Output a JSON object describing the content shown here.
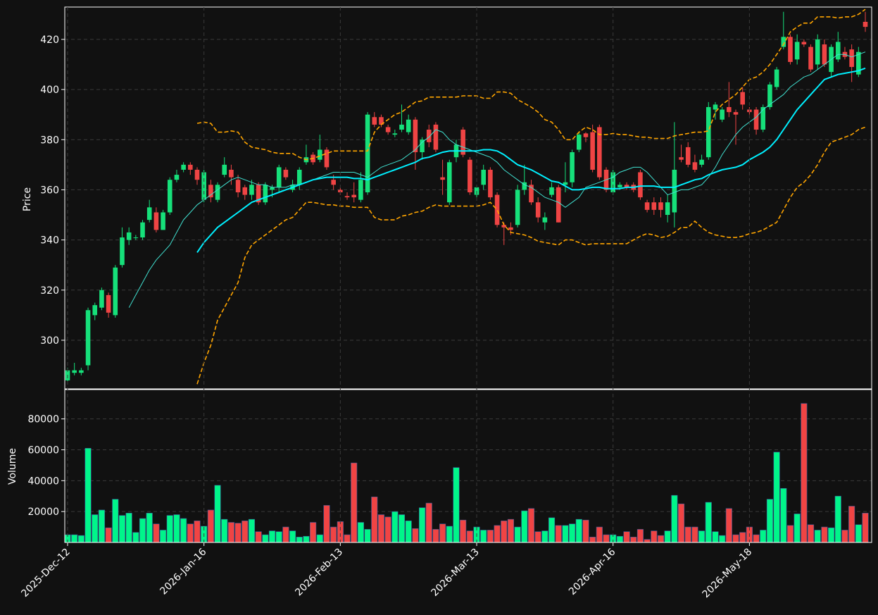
{
  "chart_data": [
    {
      "type": "candlestick",
      "ylabel": "Price",
      "ylim": [
        280.6,
        432.9
      ],
      "yticks": [
        300,
        320,
        340,
        360,
        380,
        400,
        420
      ],
      "grid": true,
      "colors": {
        "up": "#16e07a",
        "down": "#ef4444"
      },
      "open": [
        284,
        287,
        287,
        290,
        310,
        313,
        318,
        310,
        330,
        340,
        341,
        341,
        348,
        351,
        344,
        351,
        364,
        368,
        370,
        368,
        356,
        362,
        356,
        366,
        368,
        364,
        361,
        358,
        362,
        355,
        360,
        361,
        368,
        360,
        362,
        371,
        374,
        372,
        376,
        364,
        360,
        357.5,
        358,
        356,
        359,
        389,
        389,
        385,
        382,
        384,
        383,
        388,
        375,
        384,
        386,
        365,
        355,
        373,
        384,
        372,
        358,
        362,
        368,
        358,
        346,
        345,
        346,
        360,
        362,
        355,
        347,
        358,
        361,
        362,
        363,
        376,
        382.5,
        383,
        385,
        368,
        359,
        361,
        362,
        362,
        367,
        355,
        355,
        355,
        350,
        351,
        373,
        377,
        371,
        370,
        373,
        392,
        388,
        393,
        391,
        399,
        392,
        392,
        384,
        393,
        401,
        417,
        421,
        412,
        419,
        417,
        410,
        418,
        407,
        412,
        415,
        416,
        406,
        427
      ],
      "high": [
        289,
        291,
        289,
        313,
        315,
        321,
        319,
        330,
        345,
        345,
        342,
        348,
        356,
        353,
        352,
        365,
        368,
        371,
        371,
        369,
        368,
        364,
        363,
        373,
        370,
        366,
        362,
        364,
        363,
        363,
        362,
        370,
        369,
        364,
        369,
        378,
        375,
        382,
        377,
        366,
        361,
        359,
        363,
        367,
        391,
        391,
        390,
        386,
        384,
        394,
        390,
        389,
        381,
        386,
        387,
        372,
        372,
        380,
        385,
        373,
        362,
        370,
        369,
        359,
        347,
        347,
        362,
        370,
        364,
        357,
        351,
        363,
        362,
        371,
        376,
        383,
        383,
        386,
        386,
        369,
        368,
        363,
        363,
        363,
        368,
        356,
        357,
        357,
        358,
        387,
        378,
        379,
        374,
        374,
        395,
        395,
        393,
        403,
        392,
        401,
        393,
        393,
        394,
        403,
        409,
        431,
        422,
        422,
        420,
        418,
        422,
        420,
        418,
        423,
        417,
        418,
        417,
        431
      ],
      "low": [
        283,
        286,
        286,
        288,
        308,
        312,
        309,
        309,
        329,
        338,
        340,
        340,
        347,
        343,
        344,
        350,
        363,
        367,
        366,
        362,
        355,
        355,
        355,
        365,
        362,
        357,
        356,
        356,
        354,
        354,
        357,
        359,
        364,
        359,
        360,
        370,
        370,
        371,
        368,
        360,
        358,
        356,
        355,
        355,
        358,
        385,
        385,
        382,
        381,
        383,
        382,
        368,
        372,
        377,
        375,
        358,
        354,
        371,
        373,
        358,
        357,
        360,
        356,
        345,
        338,
        342,
        345,
        358,
        354,
        347,
        344,
        357,
        347,
        359,
        361,
        375,
        379,
        367,
        364,
        359,
        358,
        360,
        360,
        359,
        356,
        351,
        350,
        349,
        347,
        345,
        371,
        369,
        367,
        369,
        372,
        388,
        387,
        389,
        378,
        392,
        390,
        382,
        383,
        392,
        400,
        416,
        410,
        410,
        417,
        407,
        408,
        409,
        405,
        411,
        412,
        403,
        405,
        423
      ],
      "close": [
        288,
        288,
        288,
        312,
        314,
        320,
        311,
        329,
        341,
        343,
        341,
        347,
        353,
        344,
        351,
        364,
        366,
        370,
        368,
        364,
        367,
        357,
        362,
        370,
        365,
        359,
        358,
        362,
        355,
        362,
        361,
        369,
        365,
        362,
        368,
        373,
        371,
        376,
        369,
        362,
        359,
        357,
        357,
        364,
        390,
        386,
        386,
        383,
        382.5,
        386,
        388,
        375,
        380,
        379,
        376,
        364,
        371,
        378,
        374,
        359,
        361,
        368,
        357,
        346,
        345,
        344,
        360,
        363,
        355,
        349,
        349,
        361,
        347,
        363,
        375,
        382,
        381,
        368,
        365,
        360,
        367,
        362,
        361,
        360,
        357,
        352,
        352,
        352,
        355,
        368,
        372,
        370,
        368,
        372,
        393,
        394,
        392,
        391,
        390,
        394,
        391,
        384,
        393,
        402,
        408,
        421,
        411,
        419,
        418,
        408,
        420,
        410,
        417,
        419,
        413,
        409,
        415,
        425
      ],
      "overlays": [
        {
          "color": "#40e0d0",
          "width": 1,
          "values": [
            null,
            null,
            null,
            null,
            null,
            null,
            null,
            null,
            null,
            313,
            318,
            323,
            328,
            332,
            335,
            338,
            343,
            348,
            351,
            354,
            356,
            358,
            360,
            362,
            364,
            365,
            364,
            363,
            362,
            362,
            361,
            361,
            361,
            362,
            362,
            363,
            364,
            365,
            366,
            367,
            367,
            367,
            367,
            366,
            365,
            367,
            369,
            370,
            371,
            372,
            374,
            376,
            379,
            381,
            384,
            383,
            380,
            378,
            377,
            376,
            375,
            374,
            373,
            371,
            368,
            366,
            364,
            362,
            361,
            359,
            357,
            356,
            355,
            353,
            355,
            357,
            361,
            362,
            363,
            364,
            365,
            367,
            368,
            369,
            369,
            367,
            364,
            361,
            358,
            359,
            360,
            360,
            361,
            362,
            365,
            369,
            374,
            378,
            382,
            385,
            387,
            389,
            392,
            394,
            396,
            398,
            401,
            403,
            405,
            406,
            408,
            410,
            412,
            414,
            414,
            413,
            414,
            415
          ]
        },
        {
          "color": "#00f0ff",
          "width": 2,
          "values": [
            null,
            null,
            null,
            null,
            null,
            null,
            null,
            null,
            null,
            null,
            null,
            null,
            null,
            null,
            null,
            null,
            null,
            null,
            null,
            335,
            339,
            342,
            345,
            347,
            349,
            351,
            353,
            355,
            356,
            357,
            358,
            359,
            360,
            361,
            362,
            363,
            364,
            364.5,
            365,
            365,
            365,
            365,
            364.5,
            364.5,
            364,
            365,
            366,
            367,
            368,
            369,
            370,
            371,
            372.5,
            373,
            374,
            375,
            375.5,
            375.5,
            375.5,
            375.5,
            375.5,
            376,
            376,
            375.5,
            374,
            372,
            370,
            369,
            368,
            366.5,
            365,
            363.5,
            363,
            361.5,
            360,
            360,
            360.5,
            361,
            361,
            360.5,
            360.5,
            360.5,
            361,
            361,
            361.5,
            361.5,
            361.5,
            361,
            361,
            361,
            362,
            363,
            364,
            364.5,
            366,
            367,
            368,
            368.5,
            369,
            370,
            372,
            373.5,
            375,
            377,
            380,
            384,
            388,
            392,
            395,
            398,
            401,
            404,
            405,
            406,
            406.5,
            407,
            407.5,
            408.5
          ]
        },
        {
          "color": "#ffa500",
          "width": 1.6,
          "dash": true,
          "values": [
            null,
            null,
            null,
            null,
            null,
            null,
            null,
            null,
            null,
            null,
            null,
            null,
            null,
            null,
            null,
            null,
            null,
            null,
            null,
            386.5,
            387,
            386.5,
            383,
            383,
            383.5,
            383,
            379,
            377,
            376.5,
            376,
            375,
            374.5,
            374.5,
            374.5,
            373,
            372,
            372.5,
            373.5,
            374.5,
            375.5,
            375.5,
            375.5,
            375.5,
            375.5,
            375.5,
            383,
            386,
            388,
            390,
            391,
            393,
            395,
            395.5,
            397,
            397,
            397,
            397,
            397,
            397.5,
            397.5,
            397.5,
            396.5,
            396.5,
            399,
            399,
            398.5,
            396,
            394.5,
            393,
            391,
            388,
            387,
            384,
            380,
            380,
            383,
            385,
            384,
            382,
            382,
            382.5,
            382,
            382,
            381.5,
            381,
            381,
            380.5,
            380.5,
            380.5,
            381.5,
            382,
            382.5,
            383,
            383,
            383.5,
            391,
            394,
            396,
            398,
            401,
            404,
            405,
            407,
            410,
            414,
            418,
            423,
            425,
            426.5,
            426.5,
            429,
            429,
            429,
            428.5,
            429,
            429,
            430,
            432
          ]
        },
        {
          "color": "#ffa500",
          "width": 1.6,
          "dash": true,
          "values": [
            null,
            null,
            null,
            null,
            null,
            null,
            null,
            null,
            null,
            null,
            null,
            null,
            null,
            null,
            null,
            null,
            null,
            null,
            null,
            282.5,
            291,
            298,
            308,
            313,
            318,
            323,
            333,
            338,
            340,
            342,
            344,
            346,
            348,
            349,
            352,
            355,
            355,
            354.5,
            354,
            354,
            353.5,
            353.5,
            353,
            353,
            353,
            349,
            348,
            348,
            348,
            349.5,
            350,
            351,
            351.5,
            353,
            354,
            353.5,
            353.5,
            353.5,
            353.5,
            353.5,
            353.5,
            354,
            355,
            352,
            346,
            343,
            342.5,
            342,
            341,
            339.5,
            339,
            338.5,
            338,
            340,
            340,
            339,
            338,
            338.5,
            338.5,
            338.5,
            338.5,
            338.5,
            338.5,
            340,
            341.5,
            342.5,
            342,
            341,
            341.5,
            343,
            345,
            345,
            347.5,
            345,
            343,
            342,
            341.5,
            341,
            341,
            341.5,
            342.5,
            343,
            344,
            345.5,
            347,
            352,
            357,
            361,
            363,
            366,
            370,
            375,
            379,
            380,
            381,
            382,
            384,
            385
          ]
        }
      ]
    },
    {
      "type": "bar",
      "ylabel": "Volume",
      "ylim": [
        0,
        99000
      ],
      "yticks": [
        20000,
        40000,
        60000,
        80000
      ],
      "grid": true,
      "colors": {
        "up": "#00f58a",
        "down": "#f04444"
      },
      "categories": [
        "2025-Dec-12",
        null,
        null,
        null,
        null,
        null,
        null,
        null,
        null,
        null,
        null,
        null,
        null,
        null,
        null,
        null,
        null,
        null,
        null,
        null,
        "2026-Jan-16",
        null,
        null,
        null,
        null,
        null,
        null,
        null,
        null,
        null,
        null,
        null,
        null,
        null,
        null,
        null,
        null,
        null,
        null,
        null,
        "2026-Feb-13",
        null,
        null,
        null,
        null,
        null,
        null,
        null,
        null,
        null,
        null,
        null,
        null,
        null,
        null,
        null,
        null,
        null,
        null,
        null,
        "2026-Mar-13",
        null,
        null,
        null,
        null,
        null,
        null,
        null,
        null,
        null,
        null,
        null,
        null,
        null,
        null,
        null,
        null,
        null,
        null,
        null,
        "2026-Apr-16",
        null,
        null,
        null,
        null,
        null,
        null,
        null,
        null,
        null,
        null,
        null,
        null,
        null,
        null,
        null,
        null,
        null,
        null,
        null,
        "2026-May-18",
        null,
        null,
        null,
        null,
        null,
        null,
        null,
        null,
        null,
        null,
        null,
        null,
        null,
        null,
        null,
        null,
        null
      ],
      "values": [
        5000,
        5000,
        4500,
        61000,
        18000,
        21000,
        9500,
        28000,
        17500,
        19000,
        6500,
        15500,
        19000,
        12000,
        8000,
        17500,
        18000,
        15500,
        12000,
        14000,
        10500,
        21000,
        37000,
        15000,
        13000,
        12500,
        14000,
        15000,
        7000,
        5000,
        7500,
        7000,
        10000,
        7500,
        3500,
        4000,
        13000,
        5000,
        24000,
        10000,
        13500,
        5000,
        51500,
        13000,
        8500,
        29500,
        18000,
        16500,
        20000,
        18000,
        14000,
        9000,
        22500,
        25500,
        8500,
        12000,
        10500,
        48500,
        14500,
        7500,
        10000,
        8000,
        8000,
        11000,
        14000,
        15000,
        10000,
        20500,
        22000,
        7000,
        7500,
        16000,
        11000,
        11000,
        12000,
        15000,
        14500,
        3500,
        10000,
        5000,
        5000,
        4000,
        7000,
        3500,
        8500,
        2000,
        7500,
        4500,
        7500,
        30500,
        25000,
        10000,
        10000,
        7500,
        26000,
        7000,
        4500,
        22000,
        5000,
        6500,
        10000,
        5000,
        8000,
        28000,
        58500,
        35000,
        11000,
        18500,
        90000,
        11500,
        8000,
        10000,
        9500,
        30000,
        8000,
        23500,
        11500,
        19000
      ]
    }
  ]
}
